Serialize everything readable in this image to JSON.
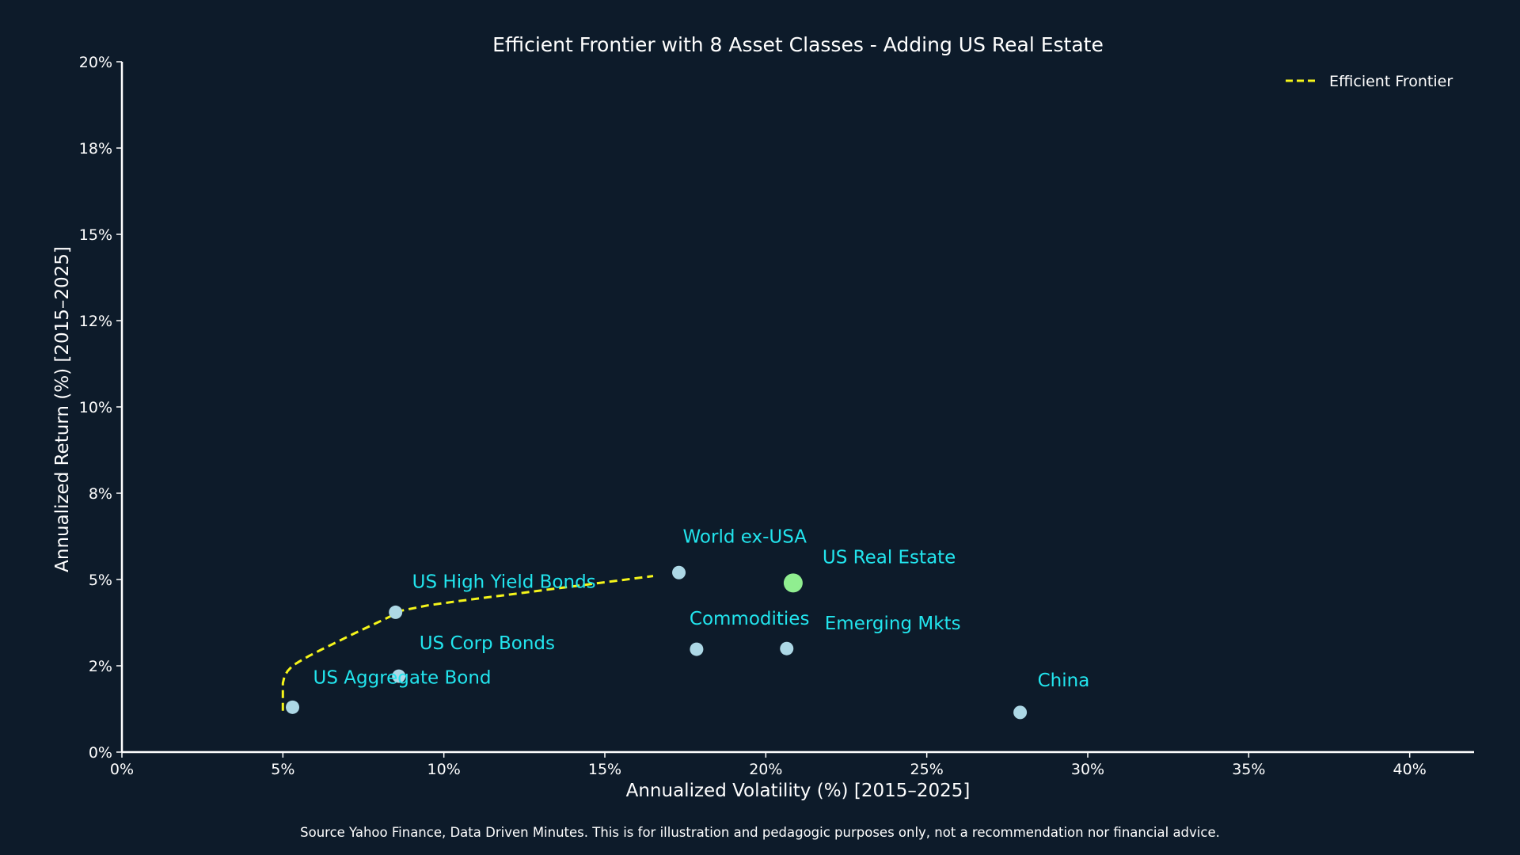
{
  "chart_data": {
    "type": "scatter",
    "title": "Efficient Frontier with 8 Asset Classes - Adding US Real Estate",
    "xlabel": "Annualized Volatility (%) [2015–2025]",
    "ylabel": "Annualized Return (%) [2015–2025]",
    "xlim": [
      0,
      42
    ],
    "ylim": [
      0,
      20
    ],
    "x_ticks": [
      0,
      5,
      10,
      15,
      20,
      25,
      30,
      35,
      40
    ],
    "y_ticks": [
      0,
      2.5,
      5,
      7.5,
      10,
      12.5,
      15,
      17.5,
      20
    ],
    "x_tick_labels": [
      "0%",
      "5%",
      "10%",
      "15%",
      "20%",
      "25%",
      "30%",
      "35%",
      "40%"
    ],
    "y_tick_labels": [
      "0%",
      "2%",
      "5%",
      "8%",
      "10%",
      "12%",
      "15%",
      "18%",
      "20%"
    ],
    "grid": false,
    "legend": {
      "placement": "top-right",
      "entries": [
        "Efficient Frontier"
      ]
    },
    "points": [
      {
        "name": "US Aggregate Bond",
        "x": 5.3,
        "y": 1.3,
        "color": "#add8e6"
      },
      {
        "name": "US Corp Bonds",
        "x": 8.6,
        "y": 2.2,
        "color": "#add8e6"
      },
      {
        "name": "US High Yield Bonds",
        "x": 8.5,
        "y": 4.05,
        "color": "#add8e6"
      },
      {
        "name": "World ex-USA",
        "x": 17.3,
        "y": 5.2,
        "color": "#add8e6"
      },
      {
        "name": "Commodities",
        "x": 17.85,
        "y": 2.98,
        "color": "#add8e6"
      },
      {
        "name": "Emerging Mkts",
        "x": 20.65,
        "y": 3.0,
        "color": "#add8e6"
      },
      {
        "name": "US Real Estate",
        "x": 20.85,
        "y": 4.9,
        "color": "#90ee90",
        "highlight": true
      },
      {
        "name": "China",
        "x": 27.9,
        "y": 1.15,
        "color": "#add8e6"
      }
    ],
    "series": [
      {
        "name": "Efficient Frontier",
        "style": "dashed",
        "color": "#f5f51a",
        "x": [
          5.0,
          5.0,
          5.0,
          5.05,
          5.15,
          5.3,
          5.5,
          5.8,
          6.2,
          6.7,
          7.2,
          7.7,
          8.2,
          8.7,
          9.5,
          10.5,
          11.5,
          12.5,
          13.5,
          14.5,
          15.5,
          16.5
        ],
        "y": [
          1.2,
          1.6,
          2.0,
          2.2,
          2.35,
          2.5,
          2.62,
          2.78,
          2.97,
          3.2,
          3.43,
          3.65,
          3.87,
          4.1,
          4.25,
          4.38,
          4.5,
          4.62,
          4.74,
          4.86,
          4.98,
          5.1
        ]
      }
    ],
    "colors": {
      "background": "#0d1b2a",
      "axis": "#ffffff",
      "label": "#22e5ee",
      "frontier": "#f5f51a"
    }
  },
  "footer": "Source Yahoo Finance, Data Driven Minutes. This is for illustration and pedagogic purposes only, not a recommendation nor financial advice."
}
